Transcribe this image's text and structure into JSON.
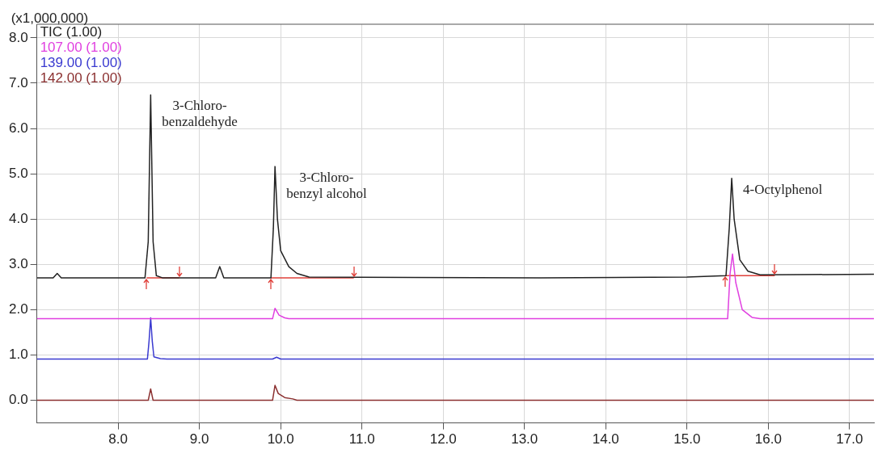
{
  "chart_data": {
    "type": "line",
    "ylabel": "(x1,000,000)",
    "xlim": [
      7.0,
      17.3
    ],
    "xticks": [
      {
        "value": 8,
        "label": "8.0"
      },
      {
        "value": 9,
        "label": "9.0"
      },
      {
        "value": 10,
        "label": "10.0"
      },
      {
        "value": 11,
        "label": "11.0"
      },
      {
        "value": 12,
        "label": "12.0"
      },
      {
        "value": 13,
        "label": "13.0"
      },
      {
        "value": 14,
        "label": "14.0"
      },
      {
        "value": 15,
        "label": "15.0"
      },
      {
        "value": 16,
        "label": "16.0"
      },
      {
        "value": 17,
        "label": "17.0"
      }
    ],
    "ylim": [
      -0.5,
      8.3
    ],
    "yticks": [
      {
        "value": 0,
        "label": "0.0"
      },
      {
        "value": 1,
        "label": "1.0"
      },
      {
        "value": 2,
        "label": "2.0"
      },
      {
        "value": 3,
        "label": "3.0"
      },
      {
        "value": 4,
        "label": "4.0"
      },
      {
        "value": 5,
        "label": "5.0"
      },
      {
        "value": 6,
        "label": "6.0"
      },
      {
        "value": 7,
        "label": "7.0"
      },
      {
        "value": 8,
        "label": "8.0"
      }
    ],
    "grid": true,
    "legend": "top left",
    "marker": "none",
    "line_style": "solid",
    "annotations": [
      {
        "text": "3-Chloro-\nbenzaldehyde",
        "x": 8.4,
        "y": 6.74
      },
      {
        "text": "3-Chloro-\nbenzyl alcohol",
        "x": 9.93,
        "y": 5.16
      },
      {
        "text": "4-Octylphenol",
        "x": 15.55,
        "y": 4.9
      }
    ],
    "series": [
      {
        "name": "TIC (1.00)",
        "color": "#222222",
        "x": [
          7.0,
          7.2,
          7.25,
          7.3,
          8.33,
          8.37,
          8.4,
          8.43,
          8.47,
          8.55,
          9.2,
          9.25,
          9.3,
          9.88,
          9.91,
          9.93,
          9.96,
          10.0,
          10.1,
          10.2,
          10.35,
          13.2,
          15.0,
          15.48,
          15.52,
          15.55,
          15.58,
          15.65,
          15.75,
          15.9,
          17.3
        ],
        "values": [
          2.7,
          2.7,
          2.8,
          2.7,
          2.7,
          3.5,
          6.74,
          3.5,
          2.75,
          2.7,
          2.7,
          2.95,
          2.7,
          2.7,
          3.8,
          5.16,
          4.0,
          3.3,
          2.95,
          2.8,
          2.72,
          2.7,
          2.72,
          2.75,
          3.8,
          4.9,
          4.0,
          3.1,
          2.85,
          2.77,
          2.78
        ]
      },
      {
        "name": "107.00 (1.00)",
        "color": "#e040e0",
        "x": [
          7.0,
          9.9,
          9.93,
          9.98,
          10.05,
          10.1,
          15.5,
          15.53,
          15.56,
          15.6,
          15.68,
          15.8,
          15.9,
          17.3
        ],
        "values": [
          1.8,
          1.8,
          2.03,
          1.88,
          1.82,
          1.8,
          1.8,
          2.8,
          3.23,
          2.6,
          2.0,
          1.83,
          1.8,
          1.8
        ]
      },
      {
        "name": "139.00 (1.00)",
        "color": "#3a3ad0",
        "x": [
          7.0,
          8.36,
          8.38,
          8.4,
          8.42,
          8.44,
          8.52,
          8.6,
          9.9,
          9.95,
          10.0,
          17.3
        ],
        "values": [
          0.91,
          0.91,
          1.3,
          1.82,
          1.3,
          0.96,
          0.92,
          0.91,
          0.91,
          0.95,
          0.91,
          0.91
        ]
      },
      {
        "name": "142.00 (1.00)",
        "color": "#8b3030",
        "x": [
          7.0,
          8.37,
          8.4,
          8.43,
          9.9,
          9.93,
          9.97,
          10.05,
          10.15,
          10.2,
          17.3
        ],
        "values": [
          0,
          0,
          0.25,
          0,
          0,
          0.33,
          0.15,
          0.06,
          0.03,
          0,
          0
        ]
      },
      {
        "color": "#e0403a",
        "x": [
          8.35,
          8.75,
          8.8,
          9.88,
          10.9,
          10.95,
          15.47,
          16.08
        ],
        "values": [
          2.7,
          2.7,
          null,
          2.7,
          2.7,
          null,
          2.75,
          2.75
        ]
      }
    ]
  }
}
